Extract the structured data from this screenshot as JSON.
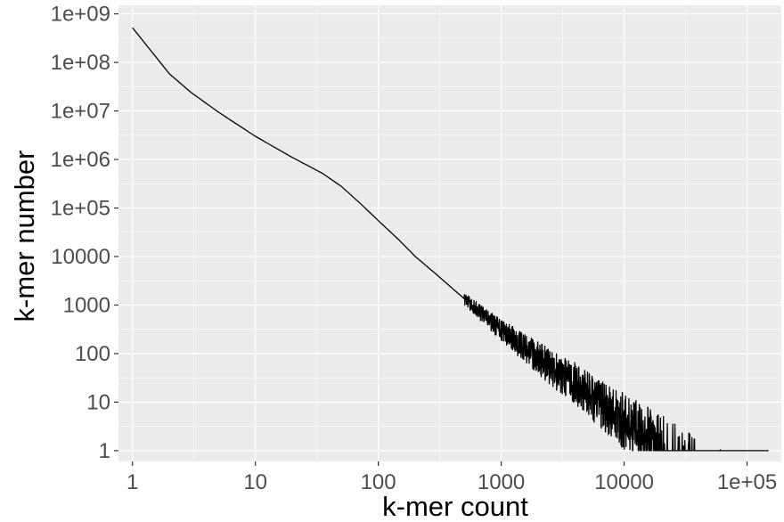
{
  "chart_data": {
    "type": "line",
    "title": "",
    "xlabel": "k-mer count",
    "ylabel": "k-mer number",
    "xscale": "log",
    "yscale": "log",
    "xlim": [
      0.77,
      190000
    ],
    "ylim": [
      0.6,
      1500000000.0
    ],
    "x_ticks": [
      {
        "value": 1,
        "label": "1"
      },
      {
        "value": 10,
        "label": "10"
      },
      {
        "value": 100,
        "label": "100"
      },
      {
        "value": 1000,
        "label": "1000"
      },
      {
        "value": 10000,
        "label": "10000"
      },
      {
        "value": 100000,
        "label": "1e+05"
      }
    ],
    "y_ticks": [
      {
        "value": 1,
        "label": "1"
      },
      {
        "value": 10,
        "label": "10"
      },
      {
        "value": 100,
        "label": "100"
      },
      {
        "value": 1000,
        "label": "1000"
      },
      {
        "value": 10000,
        "label": "10000"
      },
      {
        "value": 100000,
        "label": "1e+05"
      },
      {
        "value": 1000000,
        "label": "1e+06"
      },
      {
        "value": 10000000,
        "label": "1e+07"
      },
      {
        "value": 100000000,
        "label": "1e+08"
      },
      {
        "value": 1000000000,
        "label": "1e+09"
      }
    ],
    "grid": true,
    "panel_background": "#ebebeb",
    "grid_color": "#ffffff",
    "line_color": "#000000",
    "series": [
      {
        "x": [
          1,
          2,
          3,
          5,
          10,
          20,
          35,
          50,
          70,
          100,
          150,
          200,
          300,
          500,
          700,
          1000,
          1500,
          2000,
          3000,
          4000,
          5000,
          6000,
          8000,
          10000
        ],
        "y": [
          520000000,
          58000000,
          24000000,
          9500000,
          3000000,
          1100000,
          520000,
          280000,
          130000,
          55000,
          21000,
          10000,
          4200,
          1350,
          650,
          300,
          140,
          80,
          38,
          24,
          15,
          10,
          6,
          4
        ]
      }
    ],
    "noisy_tail": {
      "from": 500,
      "to": 150000,
      "baseline": 1,
      "last_x": 150000
    }
  }
}
